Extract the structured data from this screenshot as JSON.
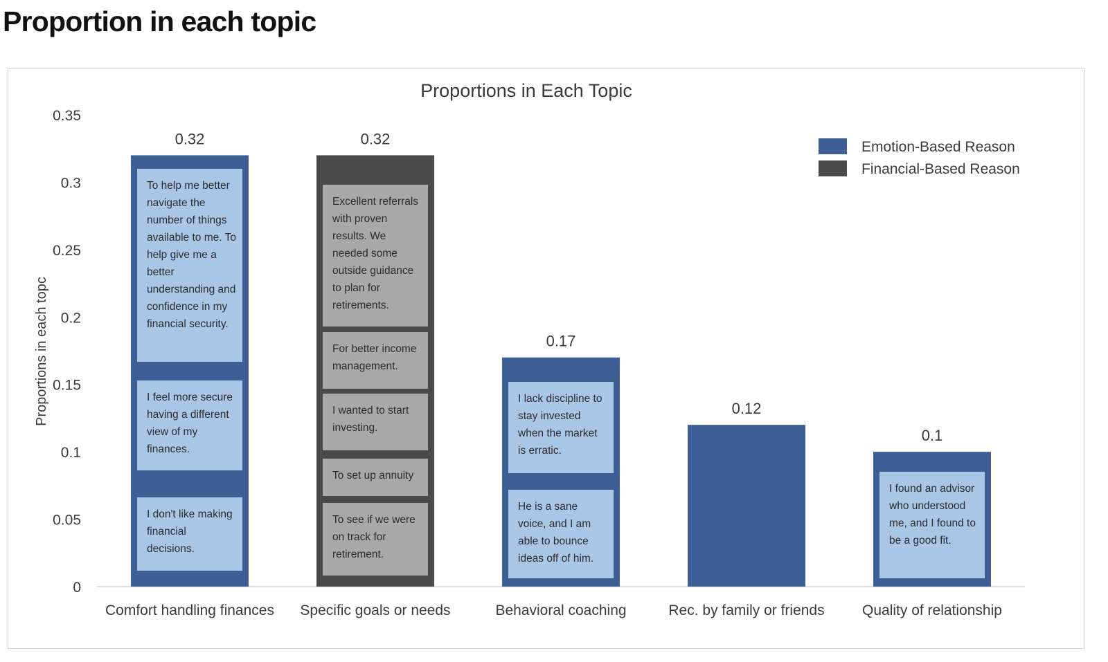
{
  "page": {
    "heading": "Proportion in each topic"
  },
  "chart_data": {
    "type": "bar",
    "title": "Proportions in Each Topic",
    "ylabel": "Proportions in each topc",
    "xlabel": "",
    "ylim": [
      0,
      0.35
    ],
    "yticks": [
      "0",
      "0.05",
      "0.1",
      "0.15",
      "0.2",
      "0.25",
      "0.3",
      "0.35"
    ],
    "grid": false,
    "legend_position": "top-right",
    "colors": {
      "emotion": "#3e5f95",
      "financial": "#4a4a4a",
      "emotion_note": "#a9c6e6",
      "financial_note": "#a8a8a8"
    },
    "legend": [
      {
        "label": "Emotion-Based Reason",
        "key": "emotion"
      },
      {
        "label": "Financial-Based Reason",
        "key": "financial"
      }
    ],
    "categories": [
      "Comfort handling finances",
      "Specific goals or needs",
      "Behavioral coaching",
      "Rec. by family or friends",
      "Quality of relationship"
    ],
    "values": [
      0.32,
      0.32,
      0.17,
      0.12,
      0.1
    ],
    "value_labels": [
      "0.32",
      "0.32",
      "0.17",
      "0.12",
      "0.1"
    ],
    "bar_types": [
      "emotion",
      "financial",
      "emotion",
      "emotion",
      "emotion"
    ],
    "annotations": [
      [
        {
          "text": "To help me better navigate the number of things available to me. To help give me a better understanding and confidence in my financial security.",
          "top": 0.31,
          "bottom": 0.167
        },
        {
          "text": "I feel more secure having a different view of my finances.",
          "top": 0.153,
          "bottom": 0.086
        },
        {
          "text": "I don't like making financial decisions.",
          "top": 0.066,
          "bottom": 0.012
        }
      ],
      [
        {
          "text": "Excellent referrals with proven results. We needed some outside guidance to plan for retirements.",
          "top": 0.298,
          "bottom": 0.193
        },
        {
          "text": "For better income management.",
          "top": 0.189,
          "bottom": 0.147
        },
        {
          "text": "I wanted to start investing.",
          "top": 0.143,
          "bottom": 0.101
        },
        {
          "text": "To set up annuity",
          "top": 0.095,
          "bottom": 0.067
        },
        {
          "text": "To see if we were on track for retirement.",
          "top": 0.062,
          "bottom": 0.008
        }
      ],
      [
        {
          "text": "I lack discipline to stay invested when the market is erratic.",
          "top": 0.152,
          "bottom": 0.084
        },
        {
          "text": "He is a sane voice, and I am able to bounce ideas off of him.",
          "top": 0.072,
          "bottom": 0.006
        }
      ],
      [],
      [
        {
          "text": "I found an advisor who understood me, and I found to be a good fit.",
          "top": 0.085,
          "bottom": 0.006
        }
      ]
    ]
  }
}
